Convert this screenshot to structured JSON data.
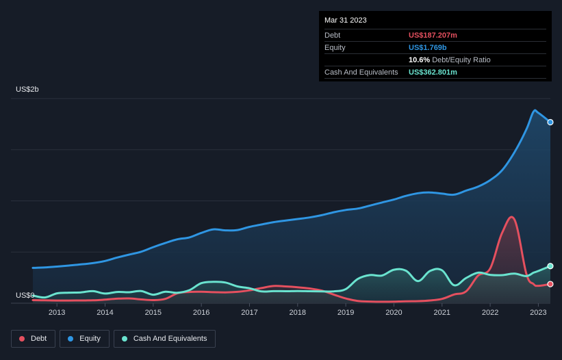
{
  "tooltip": {
    "date": "Mar 31 2023",
    "rows": [
      {
        "label": "Debt",
        "value": "US$187.207m",
        "color": "#e5505f",
        "extra": ""
      },
      {
        "label": "Equity",
        "value": "US$1.769b",
        "color": "#2f96e3",
        "extra": ""
      },
      {
        "label": "",
        "value": "10.6%",
        "color": "#ffffff",
        "extra": "Debt/Equity Ratio"
      },
      {
        "label": "Cash And Equivalents",
        "value": "US$362.801m",
        "color": "#6ae3cf",
        "extra": ""
      }
    ]
  },
  "legend": [
    {
      "label": "Debt",
      "color": "#e5505f"
    },
    {
      "label": "Equity",
      "color": "#2f96e3"
    },
    {
      "label": "Cash And Equivalents",
      "color": "#6ae3cf"
    }
  ],
  "chart_data": {
    "type": "area",
    "y_unit": "US$ millions",
    "ylim": [
      0,
      2000
    ],
    "y_tick_labels": [
      {
        "value": 2000,
        "label": "US$2b"
      },
      {
        "value": 0,
        "label": "US$0"
      }
    ],
    "xlim": [
      2012.5,
      2023.25
    ],
    "x_ticks": [
      2013,
      2014,
      2015,
      2016,
      2017,
      2018,
      2019,
      2020,
      2021,
      2022,
      2023
    ],
    "grid": true,
    "legend_position": "bottom-left",
    "series": [
      {
        "name": "Equity",
        "color": "#2f96e3",
        "points": [
          [
            2012.5,
            345
          ],
          [
            2012.75,
            349
          ],
          [
            2013.0,
            358
          ],
          [
            2013.25,
            368
          ],
          [
            2013.5,
            379
          ],
          [
            2013.75,
            392
          ],
          [
            2014.0,
            413
          ],
          [
            2014.25,
            446
          ],
          [
            2014.5,
            475
          ],
          [
            2014.75,
            503
          ],
          [
            2015.0,
            548
          ],
          [
            2015.25,
            588
          ],
          [
            2015.5,
            624
          ],
          [
            2015.75,
            643
          ],
          [
            2016.0,
            687
          ],
          [
            2016.25,
            722
          ],
          [
            2016.5,
            712
          ],
          [
            2016.75,
            715
          ],
          [
            2017.0,
            746
          ],
          [
            2017.25,
            769
          ],
          [
            2017.5,
            792
          ],
          [
            2017.75,
            808
          ],
          [
            2018.0,
            823
          ],
          [
            2018.25,
            838
          ],
          [
            2018.5,
            860
          ],
          [
            2018.75,
            889
          ],
          [
            2019.0,
            911
          ],
          [
            2019.25,
            925
          ],
          [
            2019.5,
            954
          ],
          [
            2019.75,
            984
          ],
          [
            2020.0,
            1013
          ],
          [
            2020.25,
            1049
          ],
          [
            2020.5,
            1075
          ],
          [
            2020.75,
            1082
          ],
          [
            2021.0,
            1071
          ],
          [
            2021.25,
            1061
          ],
          [
            2021.5,
            1100
          ],
          [
            2021.75,
            1140
          ],
          [
            2022.0,
            1203
          ],
          [
            2022.25,
            1301
          ],
          [
            2022.5,
            1472
          ],
          [
            2022.75,
            1696
          ],
          [
            2022.9,
            1872
          ],
          [
            2023.0,
            1860
          ],
          [
            2023.25,
            1769
          ]
        ]
      },
      {
        "name": "Debt",
        "color": "#e5505f",
        "points": [
          [
            2012.5,
            30
          ],
          [
            2012.75,
            28
          ],
          [
            2013.0,
            26
          ],
          [
            2013.25,
            26
          ],
          [
            2013.5,
            27
          ],
          [
            2013.75,
            28
          ],
          [
            2014.0,
            35
          ],
          [
            2014.25,
            44
          ],
          [
            2014.5,
            47
          ],
          [
            2014.75,
            37
          ],
          [
            2015.0,
            30
          ],
          [
            2015.25,
            42
          ],
          [
            2015.5,
            96
          ],
          [
            2015.75,
            110
          ],
          [
            2016.0,
            112
          ],
          [
            2016.25,
            108
          ],
          [
            2016.5,
            106
          ],
          [
            2016.75,
            111
          ],
          [
            2017.0,
            126
          ],
          [
            2017.25,
            148
          ],
          [
            2017.5,
            168
          ],
          [
            2017.75,
            164
          ],
          [
            2018.0,
            156
          ],
          [
            2018.25,
            144
          ],
          [
            2018.5,
            123
          ],
          [
            2018.75,
            84
          ],
          [
            2019.0,
            46
          ],
          [
            2019.25,
            22
          ],
          [
            2019.5,
            16
          ],
          [
            2019.75,
            14
          ],
          [
            2020.0,
            15
          ],
          [
            2020.25,
            19
          ],
          [
            2020.5,
            20
          ],
          [
            2020.75,
            27
          ],
          [
            2021.0,
            42
          ],
          [
            2021.25,
            85
          ],
          [
            2021.5,
            116
          ],
          [
            2021.75,
            270
          ],
          [
            2022.0,
            340
          ],
          [
            2022.25,
            690
          ],
          [
            2022.5,
            820
          ],
          [
            2022.75,
            290
          ],
          [
            2022.9,
            187
          ],
          [
            2023.0,
            170
          ],
          [
            2023.25,
            187
          ]
        ]
      },
      {
        "name": "Cash And Equivalents",
        "color": "#6ae3cf",
        "points": [
          [
            2012.5,
            75
          ],
          [
            2012.75,
            56
          ],
          [
            2013.0,
            96
          ],
          [
            2013.25,
            103
          ],
          [
            2013.5,
            106
          ],
          [
            2013.75,
            118
          ],
          [
            2014.0,
            94
          ],
          [
            2014.25,
            110
          ],
          [
            2014.5,
            107
          ],
          [
            2014.75,
            119
          ],
          [
            2015.0,
            83
          ],
          [
            2015.25,
            112
          ],
          [
            2015.5,
            102
          ],
          [
            2015.75,
            127
          ],
          [
            2016.0,
            196
          ],
          [
            2016.25,
            209
          ],
          [
            2016.5,
            202
          ],
          [
            2016.75,
            164
          ],
          [
            2017.0,
            146
          ],
          [
            2017.25,
            115
          ],
          [
            2017.5,
            118
          ],
          [
            2017.75,
            117
          ],
          [
            2018.0,
            119
          ],
          [
            2018.25,
            117
          ],
          [
            2018.5,
            116
          ],
          [
            2018.75,
            116
          ],
          [
            2019.0,
            138
          ],
          [
            2019.25,
            237
          ],
          [
            2019.5,
            275
          ],
          [
            2019.75,
            270
          ],
          [
            2020.0,
            327
          ],
          [
            2020.25,
            318
          ],
          [
            2020.5,
            216
          ],
          [
            2020.75,
            315
          ],
          [
            2021.0,
            321
          ],
          [
            2021.25,
            176
          ],
          [
            2021.5,
            246
          ],
          [
            2021.75,
            298
          ],
          [
            2022.0,
            277
          ],
          [
            2022.25,
            274
          ],
          [
            2022.5,
            289
          ],
          [
            2022.75,
            265
          ],
          [
            2022.9,
            298
          ],
          [
            2023.0,
            315
          ],
          [
            2023.25,
            363
          ]
        ]
      }
    ]
  }
}
